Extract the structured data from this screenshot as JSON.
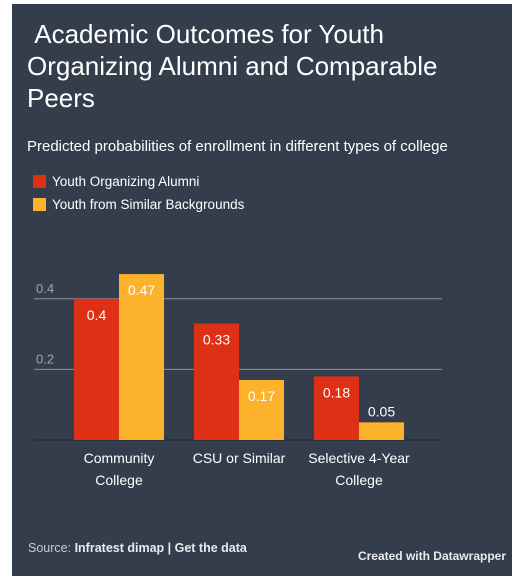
{
  "colors": {
    "background": "#343d4c",
    "series_1": "#dd3014",
    "series_2": "#fdb22b",
    "gridline": "#8a9099",
    "text": "#ffffff"
  },
  "chart_data": {
    "type": "bar",
    "title": " Academic Outcomes for Youth Organizing Alumni and Comparable Peers",
    "subtitle": "Predicted probabilities of enrollment in different types of college",
    "categories": [
      "Community College",
      "CSU or Similar",
      "Selective 4-Year College"
    ],
    "series": [
      {
        "name": "Youth Organizing Alumni",
        "values": [
          0.4,
          0.33,
          0.18
        ]
      },
      {
        "name": "Youth from Similar Backgrounds",
        "values": [
          0.47,
          0.17,
          0.05
        ]
      }
    ],
    "yticks": [
      0.2,
      0.4
    ],
    "ylim": [
      0,
      0.47
    ],
    "grid": true,
    "legend_position": "top-left"
  },
  "footer": {
    "source_prefix": "Source: ",
    "source_name": "Infratest dimap",
    "separator": " | ",
    "get_data_label": "Get the data",
    "credit": "Created with Datawrapper"
  }
}
